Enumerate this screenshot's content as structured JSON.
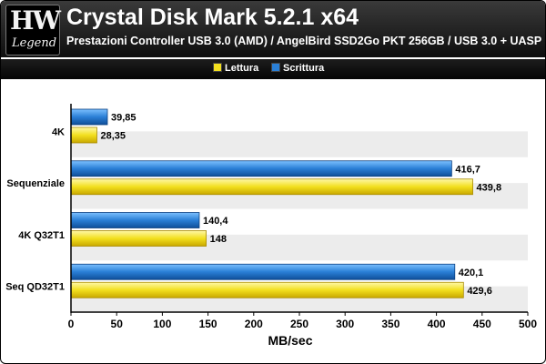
{
  "logo": {
    "mark": "HW",
    "word": "Legend"
  },
  "header": {
    "title": "Crystal Disk Mark 5.2.1 x64",
    "subtitle": "Prestazioni Controller USB 3.0 (AMD) / AngelBird SSD2Go PKT 256GB / USB 3.0 + UASP"
  },
  "legend": [
    {
      "label": "Lettura",
      "color": "#f2df1e"
    },
    {
      "label": "Scrittura",
      "color": "#2a7fd6"
    }
  ],
  "chart_data": {
    "type": "bar",
    "orientation": "horizontal",
    "categories": [
      "4K",
      "Sequenziale",
      "4K Q32T1",
      "Seq QD32T1"
    ],
    "series": [
      {
        "name": "Scrittura",
        "values": [
          39.85,
          416.7,
          140.4,
          420.1
        ],
        "labels": [
          "39,85",
          "416,7",
          "140,4",
          "420,1"
        ],
        "color": "#2a7fd6"
      },
      {
        "name": "Lettura",
        "values": [
          28.35,
          439.8,
          148,
          429.6
        ],
        "labels": [
          "28,35",
          "439,8",
          "148",
          "429,6"
        ],
        "color": "#f2df1e"
      }
    ],
    "xlabel": "MB/sec",
    "ylabel": "",
    "xlim": [
      0,
      500
    ],
    "xticks": [
      0,
      50,
      100,
      150,
      200,
      250,
      300,
      350,
      400,
      450,
      500
    ],
    "grid": false,
    "legend_position": "top"
  }
}
